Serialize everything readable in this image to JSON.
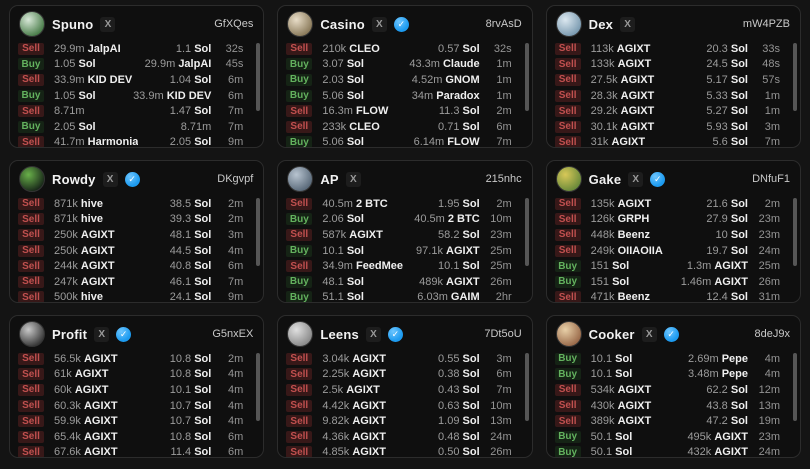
{
  "icons": {
    "x": "X",
    "verified_check": "✓"
  },
  "colors": {
    "page_bg": "#141414",
    "card_bg": "#0f0f0f",
    "card_border": "#2c2c2c",
    "sell": "#c0504f",
    "buy": "#63b15e",
    "verified_badge": "#1d9bf0"
  },
  "cards": [
    {
      "name": "Spuno",
      "address": "GfXQes",
      "verified": false,
      "avatar_colors": [
        "#d8e8d8",
        "#4a7d4a"
      ],
      "rows": [
        {
          "side": "Sell",
          "left_amount": "29.9m",
          "left_token": "JalpAI",
          "right_amount": "1.1",
          "right_token": "Sol",
          "time": "32s"
        },
        {
          "side": "Buy",
          "left_amount": "1.05",
          "left_token": "Sol",
          "right_amount": "29.9m",
          "right_token": "JalpAI",
          "time": "45s"
        },
        {
          "side": "Sell",
          "left_amount": "33.9m",
          "left_token": "KID DEV",
          "right_amount": "1.04",
          "right_token": "Sol",
          "time": "6m"
        },
        {
          "side": "Buy",
          "left_amount": "1.05",
          "left_token": "Sol",
          "right_amount": "33.9m",
          "right_token": "KID DEV",
          "time": "6m"
        },
        {
          "side": "Sell",
          "left_amount": "8.71m",
          "left_token": "",
          "right_amount": "1.47",
          "right_token": "Sol",
          "time": "7m"
        },
        {
          "side": "Buy",
          "left_amount": "2.05",
          "left_token": "Sol",
          "right_amount": "8.71m",
          "right_token": "",
          "time": "7m"
        },
        {
          "side": "Sell",
          "left_amount": "41.7m",
          "left_token": "Harmonia",
          "right_amount": "2.05",
          "right_token": "Sol",
          "time": "9m"
        }
      ]
    },
    {
      "name": "Casino",
      "address": "8rvAsD",
      "verified": true,
      "avatar_colors": [
        "#e8ddc8",
        "#8a7a5a"
      ],
      "rows": [
        {
          "side": "Sell",
          "left_amount": "210k",
          "left_token": "CLEO",
          "right_amount": "0.57",
          "right_token": "Sol",
          "time": "32s"
        },
        {
          "side": "Buy",
          "left_amount": "3.07",
          "left_token": "Sol",
          "right_amount": "43.3m",
          "right_token": "Claude",
          "time": "1m"
        },
        {
          "side": "Buy",
          "left_amount": "2.03",
          "left_token": "Sol",
          "right_amount": "4.52m",
          "right_token": "GNOM",
          "time": "1m"
        },
        {
          "side": "Buy",
          "left_amount": "5.06",
          "left_token": "Sol",
          "right_amount": "34m",
          "right_token": "Paradox",
          "time": "1m"
        },
        {
          "side": "Sell",
          "left_amount": "16.3m",
          "left_token": "FLOW",
          "right_amount": "11.3",
          "right_token": "Sol",
          "time": "2m"
        },
        {
          "side": "Sell",
          "left_amount": "233k",
          "left_token": "CLEO",
          "right_amount": "0.71",
          "right_token": "Sol",
          "time": "6m"
        },
        {
          "side": "Buy",
          "left_amount": "5.06",
          "left_token": "Sol",
          "right_amount": "6.14m",
          "right_token": "FLOW",
          "time": "7m"
        }
      ]
    },
    {
      "name": "Dex",
      "address": "mW4PZB",
      "verified": false,
      "avatar_colors": [
        "#dce8f0",
        "#7a9ab0"
      ],
      "rows": [
        {
          "side": "Sell",
          "left_amount": "113k",
          "left_token": "AGIXT",
          "right_amount": "20.3",
          "right_token": "Sol",
          "time": "33s"
        },
        {
          "side": "Sell",
          "left_amount": "133k",
          "left_token": "AGIXT",
          "right_amount": "24.5",
          "right_token": "Sol",
          "time": "48s"
        },
        {
          "side": "Sell",
          "left_amount": "27.5k",
          "left_token": "AGIXT",
          "right_amount": "5.17",
          "right_token": "Sol",
          "time": "57s"
        },
        {
          "side": "Sell",
          "left_amount": "28.3k",
          "left_token": "AGIXT",
          "right_amount": "5.33",
          "right_token": "Sol",
          "time": "1m"
        },
        {
          "side": "Sell",
          "left_amount": "29.2k",
          "left_token": "AGIXT",
          "right_amount": "5.27",
          "right_token": "Sol",
          "time": "1m"
        },
        {
          "side": "Sell",
          "left_amount": "30.1k",
          "left_token": "AGIXT",
          "right_amount": "5.93",
          "right_token": "Sol",
          "time": "3m"
        },
        {
          "side": "Sell",
          "left_amount": "31k",
          "left_token": "AGIXT",
          "right_amount": "5.6",
          "right_token": "Sol",
          "time": "7m"
        }
      ]
    },
    {
      "name": "Rowdy",
      "address": "DKgvpf",
      "verified": true,
      "avatar_colors": [
        "#69b04a",
        "#1a2a1a"
      ],
      "rows": [
        {
          "side": "Sell",
          "left_amount": "871k",
          "left_token": "hive",
          "right_amount": "38.5",
          "right_token": "Sol",
          "time": "2m"
        },
        {
          "side": "Sell",
          "left_amount": "871k",
          "left_token": "hive",
          "right_amount": "39.3",
          "right_token": "Sol",
          "time": "2m"
        },
        {
          "side": "Sell",
          "left_amount": "250k",
          "left_token": "AGIXT",
          "right_amount": "48.1",
          "right_token": "Sol",
          "time": "3m"
        },
        {
          "side": "Sell",
          "left_amount": "250k",
          "left_token": "AGIXT",
          "right_amount": "44.5",
          "right_token": "Sol",
          "time": "4m"
        },
        {
          "side": "Sell",
          "left_amount": "244k",
          "left_token": "AGIXT",
          "right_amount": "40.8",
          "right_token": "Sol",
          "time": "6m"
        },
        {
          "side": "Sell",
          "left_amount": "247k",
          "left_token": "AGIXT",
          "right_amount": "46.1",
          "right_token": "Sol",
          "time": "7m"
        },
        {
          "side": "Sell",
          "left_amount": "500k",
          "left_token": "hive",
          "right_amount": "24.1",
          "right_token": "Sol",
          "time": "9m"
        }
      ]
    },
    {
      "name": "AP",
      "address": "215nhc",
      "verified": false,
      "avatar_colors": [
        "#b8c4d0",
        "#5a6a7a"
      ],
      "rows": [
        {
          "side": "Sell",
          "left_amount": "40.5m",
          "left_token": "2 BTC",
          "right_amount": "1.95",
          "right_token": "Sol",
          "time": "2m"
        },
        {
          "side": "Buy",
          "left_amount": "2.06",
          "left_token": "Sol",
          "right_amount": "40.5m",
          "right_token": "2 BTC",
          "time": "10m"
        },
        {
          "side": "Sell",
          "left_amount": "587k",
          "left_token": "AGIXT",
          "right_amount": "58.2",
          "right_token": "Sol",
          "time": "23m"
        },
        {
          "side": "Buy",
          "left_amount": "10.1",
          "left_token": "Sol",
          "right_amount": "97.1k",
          "right_token": "AGIXT",
          "time": "25m"
        },
        {
          "side": "Sell",
          "left_amount": "34.9m",
          "left_token": "FeedMee",
          "right_amount": "10.1",
          "right_token": "Sol",
          "time": "25m"
        },
        {
          "side": "Buy",
          "left_amount": "48.1",
          "left_token": "Sol",
          "right_amount": "489k",
          "right_token": "AGIXT",
          "time": "26m"
        },
        {
          "side": "Buy",
          "left_amount": "51.1",
          "left_token": "Sol",
          "right_amount": "6.03m",
          "right_token": "GAIM",
          "time": "2hr"
        }
      ]
    },
    {
      "name": "Gake",
      "address": "DNfuF1",
      "verified": true,
      "avatar_colors": [
        "#d8c858",
        "#6a8a3a"
      ],
      "rows": [
        {
          "side": "Sell",
          "left_amount": "135k",
          "left_token": "AGIXT",
          "right_amount": "21.6",
          "right_token": "Sol",
          "time": "2m"
        },
        {
          "side": "Sell",
          "left_amount": "126k",
          "left_token": "GRPH",
          "right_amount": "27.9",
          "right_token": "Sol",
          "time": "23m"
        },
        {
          "side": "Sell",
          "left_amount": "448k",
          "left_token": "Beenz",
          "right_amount": "10",
          "right_token": "Sol",
          "time": "23m"
        },
        {
          "side": "Sell",
          "left_amount": "249k",
          "left_token": "OIIAOIIA",
          "right_amount": "19.7",
          "right_token": "Sol",
          "time": "24m"
        },
        {
          "side": "Buy",
          "left_amount": "151",
          "left_token": "Sol",
          "right_amount": "1.3m",
          "right_token": "AGIXT",
          "time": "25m"
        },
        {
          "side": "Buy",
          "left_amount": "151",
          "left_token": "Sol",
          "right_amount": "1.46m",
          "right_token": "AGIXT",
          "time": "26m"
        },
        {
          "side": "Sell",
          "left_amount": "471k",
          "left_token": "Beenz",
          "right_amount": "12.4",
          "right_token": "Sol",
          "time": "31m"
        }
      ]
    },
    {
      "name": "Profit",
      "address": "G5nxEX",
      "verified": true,
      "avatar_colors": [
        "#c8c8c8",
        "#3a3a3a"
      ],
      "rows": [
        {
          "side": "Sell",
          "left_amount": "56.5k",
          "left_token": "AGIXT",
          "right_amount": "10.8",
          "right_token": "Sol",
          "time": "2m"
        },
        {
          "side": "Sell",
          "left_amount": "61k",
          "left_token": "AGIXT",
          "right_amount": "10.8",
          "right_token": "Sol",
          "time": "4m"
        },
        {
          "side": "Sell",
          "left_amount": "60k",
          "left_token": "AGIXT",
          "right_amount": "10.1",
          "right_token": "Sol",
          "time": "4m"
        },
        {
          "side": "Sell",
          "left_amount": "60.3k",
          "left_token": "AGIXT",
          "right_amount": "10.7",
          "right_token": "Sol",
          "time": "4m"
        },
        {
          "side": "Sell",
          "left_amount": "59.9k",
          "left_token": "AGIXT",
          "right_amount": "10.7",
          "right_token": "Sol",
          "time": "4m"
        },
        {
          "side": "Sell",
          "left_amount": "65.4k",
          "left_token": "AGIXT",
          "right_amount": "10.8",
          "right_token": "Sol",
          "time": "6m"
        },
        {
          "side": "Sell",
          "left_amount": "67.6k",
          "left_token": "AGIXT",
          "right_amount": "11.4",
          "right_token": "Sol",
          "time": "6m"
        }
      ]
    },
    {
      "name": "Leens",
      "address": "7Dt5oU",
      "verified": true,
      "avatar_colors": [
        "#e0e0e0",
        "#8a8a8a"
      ],
      "rows": [
        {
          "side": "Sell",
          "left_amount": "3.04k",
          "left_token": "AGIXT",
          "right_amount": "0.55",
          "right_token": "Sol",
          "time": "3m"
        },
        {
          "side": "Sell",
          "left_amount": "2.25k",
          "left_token": "AGIXT",
          "right_amount": "0.38",
          "right_token": "Sol",
          "time": "6m"
        },
        {
          "side": "Sell",
          "left_amount": "2.5k",
          "left_token": "AGIXT",
          "right_amount": "0.43",
          "right_token": "Sol",
          "time": "7m"
        },
        {
          "side": "Sell",
          "left_amount": "4.42k",
          "left_token": "AGIXT",
          "right_amount": "0.63",
          "right_token": "Sol",
          "time": "10m"
        },
        {
          "side": "Sell",
          "left_amount": "9.82k",
          "left_token": "AGIXT",
          "right_amount": "1.09",
          "right_token": "Sol",
          "time": "13m"
        },
        {
          "side": "Sell",
          "left_amount": "4.36k",
          "left_token": "AGIXT",
          "right_amount": "0.48",
          "right_token": "Sol",
          "time": "24m"
        },
        {
          "side": "Sell",
          "left_amount": "4.85k",
          "left_token": "AGIXT",
          "right_amount": "0.50",
          "right_token": "Sol",
          "time": "26m"
        }
      ]
    },
    {
      "name": "Cooker",
      "address": "8deJ9x",
      "verified": true,
      "avatar_colors": [
        "#e8d0a8",
        "#9a6a4a"
      ],
      "rows": [
        {
          "side": "Buy",
          "left_amount": "10.1",
          "left_token": "Sol",
          "right_amount": "2.69m",
          "right_token": "Pepe",
          "time": "4m"
        },
        {
          "side": "Buy",
          "left_amount": "10.1",
          "left_token": "Sol",
          "right_amount": "3.48m",
          "right_token": "Pepe",
          "time": "4m"
        },
        {
          "side": "Sell",
          "left_amount": "534k",
          "left_token": "AGIXT",
          "right_amount": "62.2",
          "right_token": "Sol",
          "time": "12m"
        },
        {
          "side": "Sell",
          "left_amount": "430k",
          "left_token": "AGIXT",
          "right_amount": "43.8",
          "right_token": "Sol",
          "time": "13m"
        },
        {
          "side": "Sell",
          "left_amount": "389k",
          "left_token": "AGIXT",
          "right_amount": "47.2",
          "right_token": "Sol",
          "time": "19m"
        },
        {
          "side": "Buy",
          "left_amount": "50.1",
          "left_token": "Sol",
          "right_amount": "495k",
          "right_token": "AGIXT",
          "time": "23m"
        },
        {
          "side": "Buy",
          "left_amount": "50.1",
          "left_token": "Sol",
          "right_amount": "432k",
          "right_token": "AGIXT",
          "time": "24m"
        }
      ]
    }
  ],
  "partial_next_row_cards": 3
}
